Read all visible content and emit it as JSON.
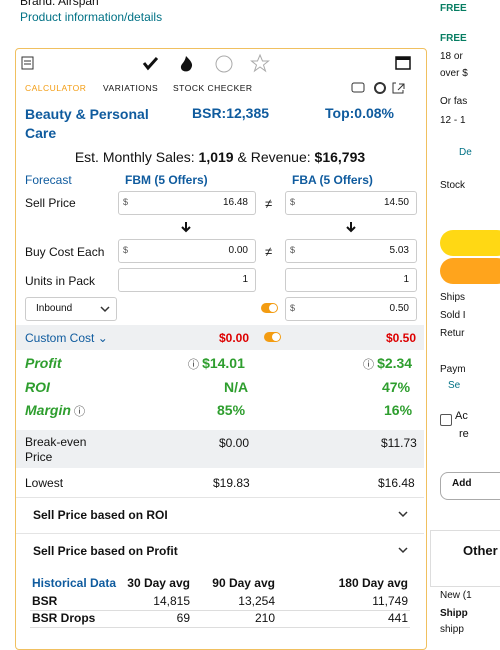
{
  "product": {
    "brand": "Brand: Airspan",
    "details_link": "Product information/details"
  },
  "tabs": [
    "CALCULATOR",
    "VARIATIONS",
    "STOCK CHECKER"
  ],
  "summary": {
    "category": "Beauty & Personal Care",
    "bsr": "BSR:12,385",
    "top": "Top:0.08%",
    "sales_prefix": "Est. Monthly Sales:",
    "sales": "1,019",
    "revenue_prefix": "& Revenue:",
    "revenue": "$16,793"
  },
  "calculator": {
    "forecast": "Forecast",
    "fbm_header": "FBM (5 Offers)",
    "fba_header": "FBA (5 Offers)",
    "currency": "$",
    "not_equal": "≠",
    "sell_price": {
      "label": "Sell Price",
      "fbm": "16.48",
      "fba": "14.50"
    },
    "buy_cost": {
      "label": "Buy Cost Each",
      "fbm": "0.00",
      "fba": "5.03"
    },
    "units": {
      "label": "Units in Pack",
      "fbm": "1",
      "fba": "1"
    },
    "inbound": {
      "label": "Inbound",
      "fba": "0.50"
    },
    "custom_cost": {
      "label": "Custom Cost",
      "fbm": "$0.00",
      "fba": "$0.50"
    },
    "profit": {
      "label": "Profit",
      "fbm": "$14.01",
      "fba": "$2.34"
    },
    "roi": {
      "label": "ROI",
      "fbm": "N/A",
      "fba": "47%"
    },
    "margin": {
      "label": "Margin",
      "fbm": "85%",
      "fba": "16%"
    },
    "break_even": {
      "label": "Break-even Price",
      "fbm": "$0.00",
      "fba": "$11.73"
    },
    "lowest": {
      "label": "Lowest",
      "fbm": "$19.83",
      "fba": "$16.48"
    }
  },
  "accordions": [
    "Sell Price based on ROI",
    "Sell Price based on Profit"
  ],
  "historical": {
    "header": [
      "Historical Data",
      "30 Day avg",
      "90 Day avg",
      "180 Day avg"
    ],
    "rows": [
      [
        "BSR",
        "14,815",
        "13,254",
        "11,749"
      ],
      [
        "BSR Drops",
        "69",
        "210",
        "441"
      ]
    ]
  },
  "sidebar": [
    "FREE",
    "FREE",
    "18 or",
    "over $",
    "Or fas",
    "12 - 1",
    "De",
    "Stock",
    "Ships",
    "Sold I",
    "Retur",
    "Paym",
    "Se",
    "Ac",
    "re",
    "Add",
    "Other",
    "New (1",
    "Shipp",
    "shipp"
  ]
}
